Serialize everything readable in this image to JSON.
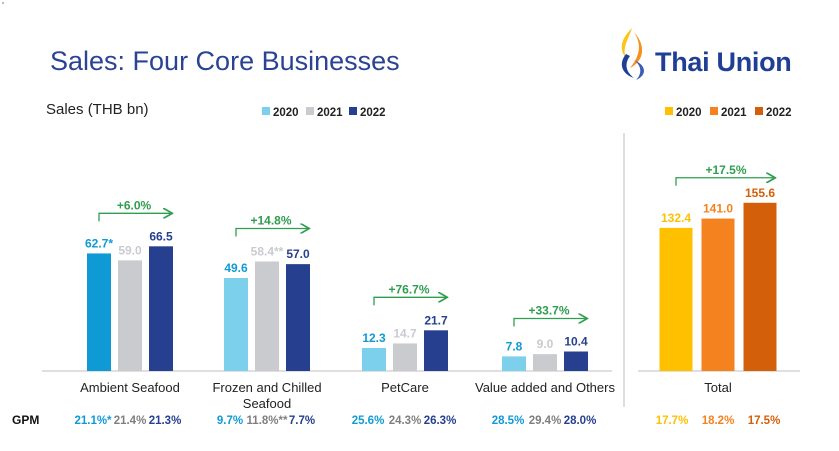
{
  "header": {
    "title": "Sales: Four Core Businesses",
    "units": "Sales (THB bn)",
    "logo_text": "Thai Union"
  },
  "colors": {
    "title": "#2a4393",
    "growth_arrow": "#2e9e4f",
    "core_2021": "#c9cbcf",
    "core_2022": "#26408f",
    "ambient_2020": "#0f9ad6",
    "core_2020": "#7dd0ec",
    "total_2020": "#ffc000",
    "total_2021": "#f4821f",
    "total_2022": "#d45f0a",
    "logo_dark": "#1f3f95",
    "logo_orange": "#f4911e",
    "logo_yellow": "#fcc419"
  },
  "chart_data": [
    {
      "type": "bar",
      "legend": [
        "2020",
        "2021",
        "2022"
      ],
      "legend_position": "top",
      "categories": [
        "Ambient Seafood",
        "Frozen and Chilled Seafood",
        "PetCare",
        "Value added and Others"
      ],
      "series": [
        {
          "name": "2020",
          "values": [
            62.7,
            49.6,
            12.3,
            7.8
          ],
          "labels": [
            "62.7*",
            "49.6",
            "12.3",
            "7.8"
          ]
        },
        {
          "name": "2021",
          "values": [
            59.0,
            58.4,
            14.7,
            9.0
          ],
          "labels": [
            "59.0",
            "58.4**",
            "14.7",
            "9.0"
          ]
        },
        {
          "name": "2022",
          "values": [
            66.5,
            57.0,
            21.7,
            10.4
          ],
          "labels": [
            "66.5",
            "57.0",
            "21.7",
            "10.4"
          ]
        }
      ],
      "growth": [
        "+6.0%",
        "+14.8%",
        "+76.7%",
        "+33.7%"
      ],
      "gpm_label": "GPM",
      "gpm": [
        [
          "21.1%*",
          "21.4%",
          "21.3%"
        ],
        [
          "9.7%",
          "11.8%**",
          "7.7%"
        ],
        [
          "25.6%",
          "24.3%",
          "26.3%"
        ],
        [
          "28.5%",
          "29.4%",
          "28.0%"
        ]
      ],
      "ylim": [
        0,
        80
      ]
    },
    {
      "type": "bar",
      "legend": [
        "2020",
        "2021",
        "2022"
      ],
      "legend_position": "top",
      "categories": [
        "Total"
      ],
      "series": [
        {
          "name": "2020",
          "values": [
            132.4
          ],
          "labels": [
            "132.4"
          ]
        },
        {
          "name": "2021",
          "values": [
            141.0
          ],
          "labels": [
            "141.0"
          ]
        },
        {
          "name": "2022",
          "values": [
            155.6
          ],
          "labels": [
            "155.6"
          ]
        }
      ],
      "growth": [
        "+17.5%"
      ],
      "gpm": [
        [
          "17.7%",
          "18.2%",
          "17.5%"
        ]
      ],
      "ylim": [
        0,
        185
      ]
    }
  ]
}
